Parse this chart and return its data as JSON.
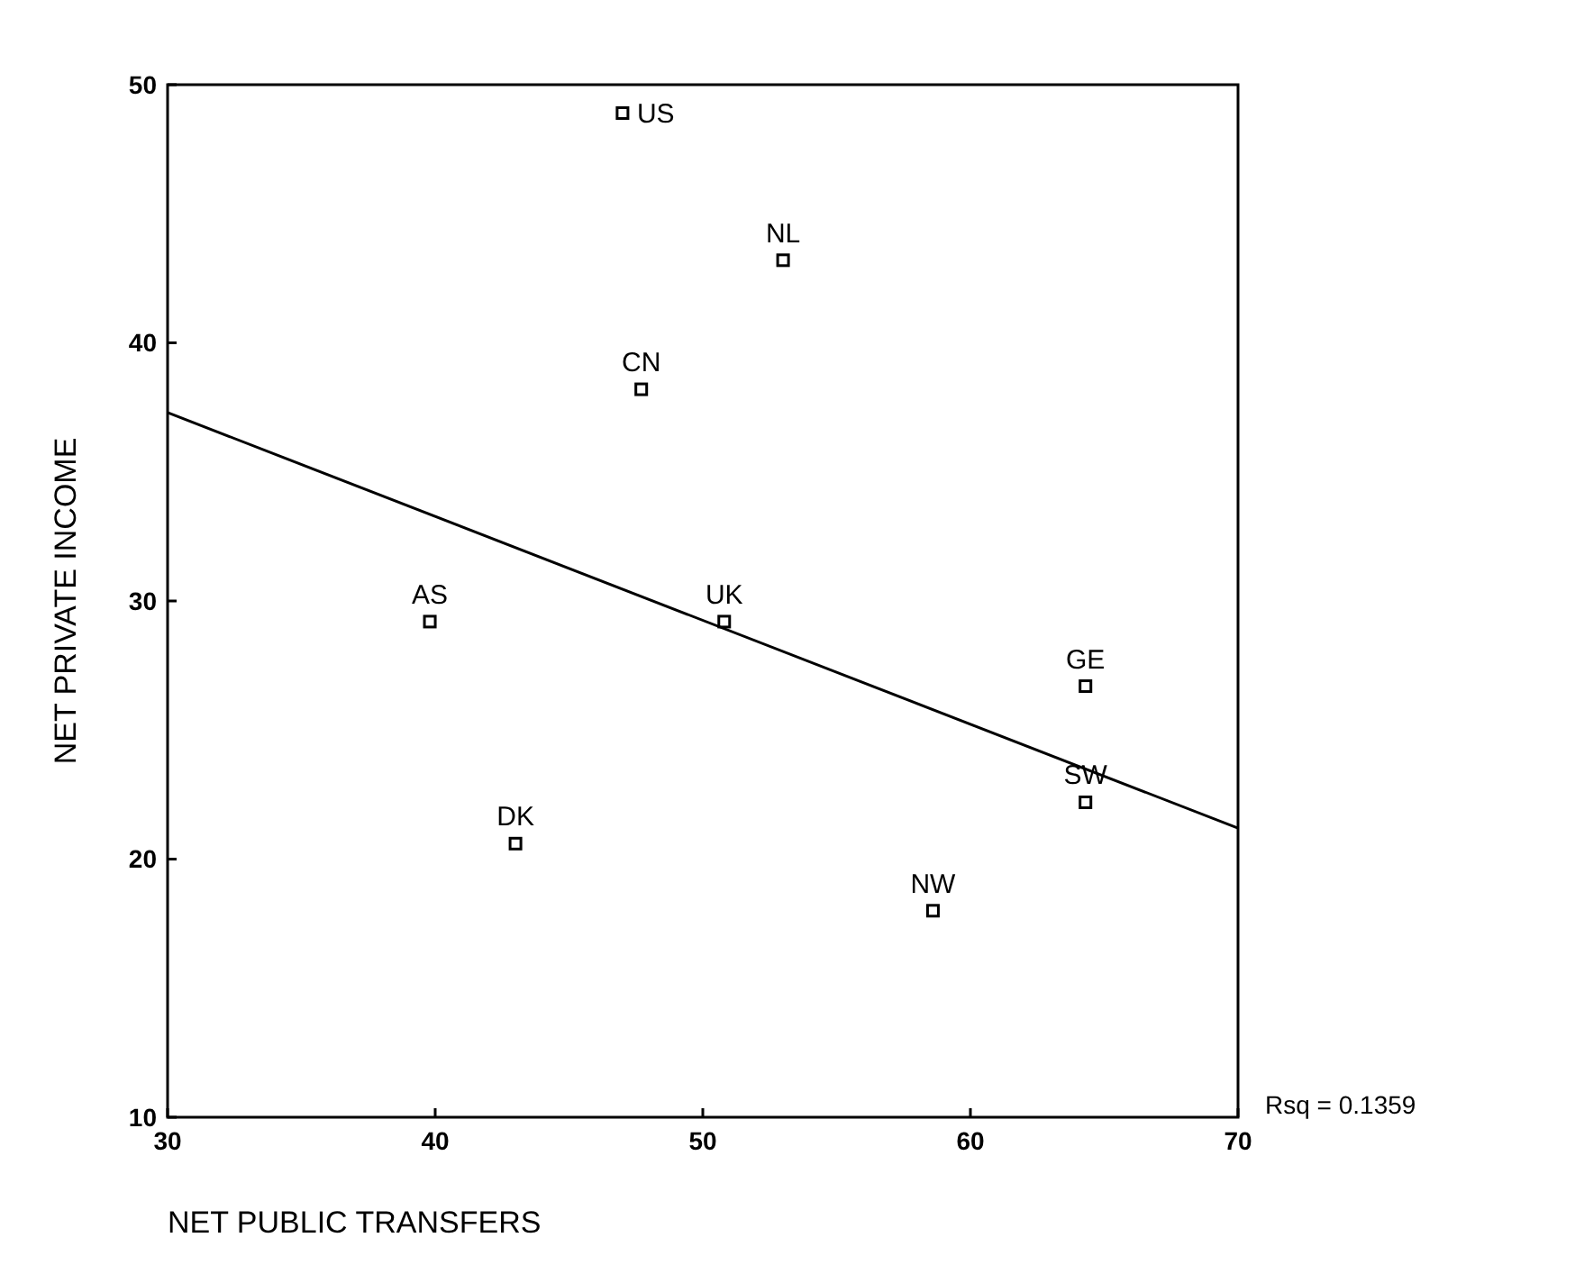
{
  "chart_data": {
    "type": "scatter",
    "xlabel": "NET PUBLIC TRANSFERS",
    "ylabel": "NET PRIVATE INCOME",
    "xlim": [
      30,
      70
    ],
    "ylim": [
      10,
      50
    ],
    "xticks": [
      30,
      40,
      50,
      60,
      70
    ],
    "yticks": [
      10,
      20,
      30,
      40,
      50
    ],
    "grid": false,
    "marker": "square",
    "series": [
      {
        "color": "#000000",
        "x": [
          47.0,
          53.0,
          47.7,
          39.8,
          50.8,
          43.0,
          64.3,
          64.3,
          58.6
        ],
        "values": [
          48.9,
          43.2,
          38.2,
          29.2,
          29.2,
          20.6,
          26.7,
          22.2,
          18.0
        ]
      },
      {
        "type": "line",
        "marker": "none",
        "color": "#000000",
        "x": [
          30,
          70
        ],
        "values": [
          37.3,
          21.2
        ]
      }
    ],
    "annotations": [
      {
        "text": "US",
        "x": 47.0,
        "y": 48.9
      },
      {
        "text": "NL",
        "x": 53.0,
        "y": 43.2
      },
      {
        "text": "CN",
        "x": 47.7,
        "y": 38.2
      },
      {
        "text": "AS",
        "x": 39.8,
        "y": 29.2
      },
      {
        "text": "UK",
        "x": 50.8,
        "y": 29.2
      },
      {
        "text": "DK",
        "x": 43.0,
        "y": 20.6
      },
      {
        "text": "GE",
        "x": 64.3,
        "y": 26.7
      },
      {
        "text": "SW",
        "x": 64.3,
        "y": 22.2
      },
      {
        "text": "NW",
        "x": 58.6,
        "y": 18.0
      },
      "Rsq = 0.1359"
    ]
  }
}
